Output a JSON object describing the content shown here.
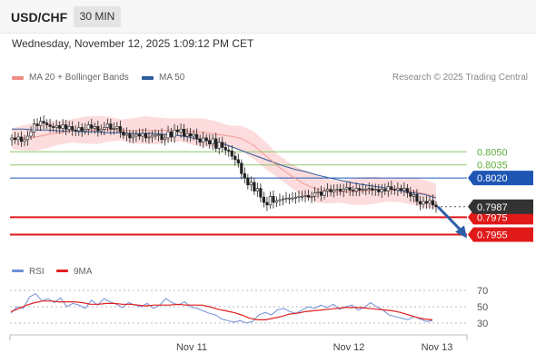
{
  "header": {
    "symbol": "USD/CHF",
    "timeframe": "30 MIN"
  },
  "datetime": "Wednesday, November 12, 2025 1:09:12 PM CET",
  "legend": {
    "ma20": {
      "label": "MA 20 + Bollinger Bands",
      "color": "#f08a84"
    },
    "ma50": {
      "label": "MA 50",
      "color": "#2d5a9c"
    }
  },
  "credit": "Research © 2025 Trading Central",
  "rsi_legend": {
    "rsi": {
      "label": "RSI",
      "color": "#6f8fd6"
    },
    "ma9": {
      "label": "9MA",
      "color": "#e02020"
    }
  },
  "chart_data": {
    "type": "candlestick",
    "ylim": [
      0.7942,
      0.8118
    ],
    "x_labels": [
      "Nov 11",
      "Nov 12",
      "Nov 13"
    ],
    "levels": [
      {
        "value": "0.8050",
        "kind": "target",
        "color": "#8cc870"
      },
      {
        "value": "0.8035",
        "kind": "target",
        "color": "#8cc870"
      },
      {
        "value": "0.8020",
        "kind": "pivot",
        "color": "#1f56b4"
      },
      {
        "value": "0.7975",
        "kind": "support",
        "color": "#e01919"
      },
      {
        "value": "0.7955",
        "kind": "support",
        "color": "#e01919"
      }
    ],
    "last_price": {
      "value": "0.7987",
      "color": "#333333"
    },
    "arrow": {
      "direction": "down",
      "color": "#2b5fa8"
    },
    "price_series": [
      0.8066,
      0.8064,
      0.8067,
      0.8062,
      0.8064,
      0.8068,
      0.8073,
      0.8082,
      0.808,
      0.8085,
      0.8083,
      0.8081,
      0.8079,
      0.8078,
      0.808,
      0.8077,
      0.8081,
      0.8076,
      0.8079,
      0.8075,
      0.8074,
      0.8078,
      0.8074,
      0.8076,
      0.8081,
      0.8077,
      0.8079,
      0.8074,
      0.8076,
      0.8078,
      0.8082,
      0.8076,
      0.8077,
      0.8079,
      0.8073,
      0.8069,
      0.8071,
      0.8066,
      0.8068,
      0.807,
      0.8068,
      0.8071,
      0.8066,
      0.8067,
      0.8069,
      0.8069,
      0.807,
      0.8064,
      0.8066,
      0.8073,
      0.8067,
      0.8075,
      0.8073,
      0.8076,
      0.8068,
      0.8071,
      0.8068,
      0.807,
      0.8065,
      0.8061,
      0.8066,
      0.8063,
      0.8059,
      0.8065,
      0.8054,
      0.8061,
      0.8055,
      0.8052,
      0.8051,
      0.8045,
      0.8041,
      0.8037,
      0.8025,
      0.802,
      0.8012,
      0.8015,
      0.8005,
      0.8008,
      0.7998,
      0.7992,
      0.7989,
      0.7999,
      0.7992,
      0.7994,
      0.7995,
      0.7996,
      0.7997,
      0.7997,
      0.7997,
      0.7998,
      0.7999,
      0.7999,
      0.8,
      0.7998,
      0.7999,
      0.8003,
      0.8004,
      0.8,
      0.8005,
      0.8007,
      0.8004,
      0.8006,
      0.8007,
      0.8005,
      0.8007,
      0.8009,
      0.8006,
      0.8005,
      0.8008,
      0.8006,
      0.8007,
      0.8007,
      0.8008,
      0.8006,
      0.8007,
      0.8004,
      0.8007,
      0.8005,
      0.801,
      0.8007,
      0.8006,
      0.8008,
      0.8006,
      0.8008,
      0.8003,
      0.7999,
      0.8001,
      0.7993,
      0.799,
      0.7993,
      0.7991,
      0.7994,
      0.7989,
      0.7987
    ],
    "ma50_series": [
      0.8076,
      0.8076,
      0.8075,
      0.8075,
      0.8074,
      0.8074,
      0.8073,
      0.8073,
      0.8072,
      0.8072,
      0.8071,
      0.8071,
      0.8071,
      0.807,
      0.8069,
      0.8067,
      0.8064,
      0.8062,
      0.8059,
      0.8054,
      0.8049,
      0.8044,
      0.8039,
      0.8034,
      0.803,
      0.8027,
      0.8023,
      0.802,
      0.8017,
      0.8014,
      0.8012,
      0.801,
      0.8008,
      0.8005,
      0.8003,
      0.8001,
      0.7997
    ],
    "ma20_series": [
      0.8065,
      0.8066,
      0.8067,
      0.807,
      0.8072,
      0.8074,
      0.8075,
      0.8075,
      0.8076,
      0.8075,
      0.8074,
      0.8075,
      0.8074,
      0.8075,
      0.8075,
      0.8073,
      0.8072,
      0.807,
      0.8068,
      0.8065,
      0.8057,
      0.8045,
      0.8033,
      0.8023,
      0.8014,
      0.8008,
      0.8005,
      0.8004,
      0.8004,
      0.8005,
      0.8006,
      0.8006,
      0.8006,
      0.8005,
      0.8002,
      0.7999
    ],
    "rsi": {
      "yticks": [
        "70",
        "50",
        "30"
      ],
      "rsi_series": [
        42,
        50,
        48,
        62,
        66,
        57,
        60,
        55,
        61,
        50,
        54,
        52,
        48,
        58,
        52,
        60,
        56,
        53,
        49,
        55,
        52,
        50,
        54,
        48,
        52,
        60,
        55,
        52,
        56,
        50,
        48,
        45,
        42,
        40,
        35,
        33,
        31,
        33,
        30,
        32,
        40,
        43,
        40,
        46,
        48,
        44,
        42,
        46,
        50,
        48,
        52,
        49,
        53,
        47,
        50,
        52,
        46,
        49,
        55,
        50,
        46,
        40,
        38,
        36,
        34,
        38,
        35,
        32,
        33
      ],
      "ma9_series": [
        44,
        48,
        52,
        55,
        57,
        57,
        56,
        56,
        56,
        55,
        53,
        53,
        54,
        54,
        53,
        53,
        52,
        51,
        52,
        52,
        52,
        53,
        52,
        52,
        52,
        50,
        47,
        45,
        43,
        40,
        36,
        34,
        34,
        36,
        38,
        41,
        42,
        44,
        45,
        46,
        47,
        48,
        49,
        49,
        49,
        48,
        47,
        46,
        45,
        43,
        40,
        37,
        35,
        34
      ]
    }
  }
}
